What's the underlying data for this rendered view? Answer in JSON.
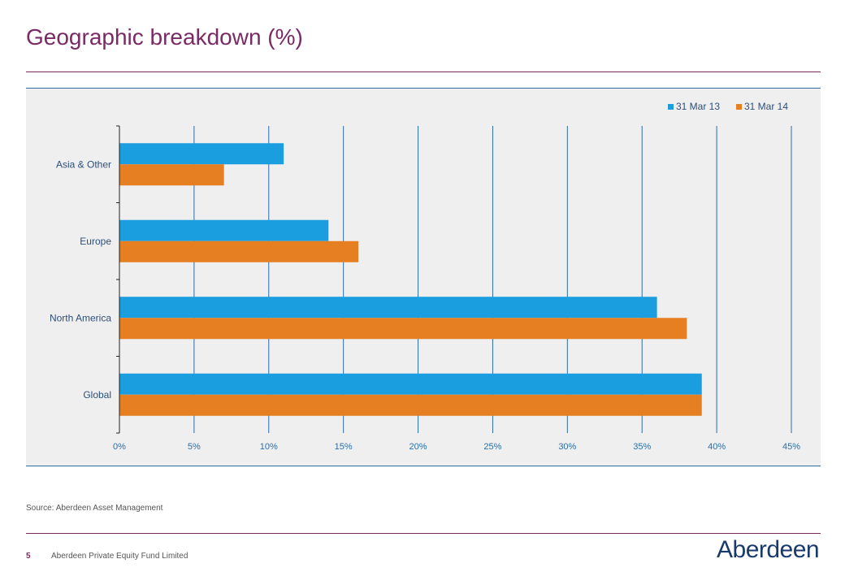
{
  "page": {
    "title": "Geographic breakdown (%)",
    "source": "Source: Aberdeen Asset Management",
    "page_number": "5",
    "footer": "Aberdeen Private Equity Fund Limited",
    "logo_text": "Aberdeen"
  },
  "colors": {
    "title": "#7a2a64",
    "series_2013": "#1b9ee0",
    "series_2014": "#e67e22",
    "gridline": "#2e6da4",
    "panel_bg": "#efefef"
  },
  "chart_data": {
    "type": "bar",
    "orientation": "horizontal",
    "categories": [
      "Asia & Other",
      "Europe",
      "North America",
      "Global"
    ],
    "series": [
      {
        "name": "31 Mar 13",
        "values": [
          11,
          14,
          36,
          39
        ]
      },
      {
        "name": "31 Mar 14",
        "values": [
          7,
          16,
          38,
          39
        ]
      }
    ],
    "xlim": [
      0,
      45
    ],
    "xticks": [
      "0%",
      "5%",
      "10%",
      "15%",
      "20%",
      "25%",
      "30%",
      "35%",
      "40%",
      "45%"
    ],
    "tick_values": [
      0,
      5,
      10,
      15,
      20,
      25,
      30,
      35,
      40,
      45
    ],
    "grid": true,
    "legend_position": "top-right"
  }
}
